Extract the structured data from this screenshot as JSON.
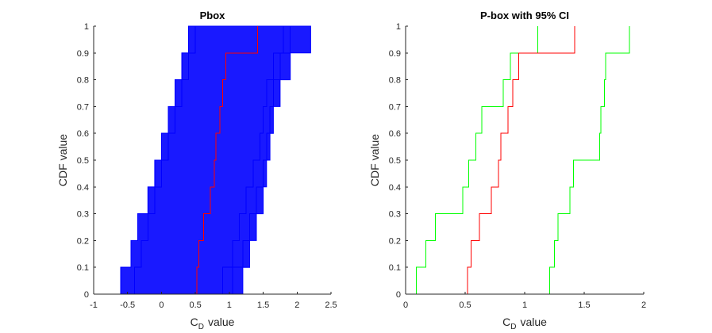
{
  "colors": {
    "axis": "#262626",
    "blue": "#0000ff",
    "red": "#ff0000",
    "green": "#00ff00",
    "band_fill": "#0000ff"
  },
  "chart_data": [
    {
      "type": "line",
      "style": "step-cdf",
      "title": "Pbox",
      "xlabel": "C_D value",
      "xlabel_main": "C",
      "xlabel_sub": "D",
      "xlabel_rest": "value",
      "ylabel": "CDF value",
      "xlim": [
        -1,
        2.5
      ],
      "ylim": [
        0,
        1
      ],
      "xticks": [
        -1,
        -0.5,
        0,
        0.5,
        1,
        1.5,
        2,
        2.5
      ],
      "xtick_labels": [
        "-1",
        "-0.5",
        "0",
        "0.5",
        "1",
        "1.5",
        "2",
        "2.5"
      ],
      "yticks": [
        0,
        0.1,
        0.2,
        0.3,
        0.4,
        0.5,
        0.6,
        0.7,
        0.8,
        0.9,
        1
      ],
      "ytick_labels": [
        "0",
        "0.1",
        "0.2",
        "0.3",
        "0.4",
        "0.5",
        "0.6",
        "0.7",
        "0.8",
        "0.9",
        "1"
      ],
      "band": {
        "color": "blue",
        "levels": [
          0,
          0.1,
          0.2,
          0.3,
          0.4,
          0.5,
          0.6,
          0.7,
          0.8,
          0.9,
          1
        ],
        "left": [
          -0.6,
          -0.45,
          -0.35,
          -0.2,
          -0.1,
          0.0,
          0.1,
          0.2,
          0.3,
          0.4,
          0.5
        ],
        "right": [
          1.0,
          1.2,
          1.3,
          1.4,
          1.5,
          1.55,
          1.6,
          1.65,
          1.75,
          1.9,
          2.2
        ]
      },
      "series": [
        {
          "color": "blue",
          "x": [
            -0.6,
            -0.45,
            -0.35,
            -0.2,
            -0.1,
            0.0,
            0.1,
            0.2,
            0.3,
            0.4,
            0.5
          ],
          "y": [
            0,
            0.1,
            0.2,
            0.3,
            0.4,
            0.5,
            0.6,
            0.7,
            0.8,
            0.9,
            1
          ]
        },
        {
          "color": "blue",
          "x": [
            -0.4,
            -0.3,
            -0.2,
            -0.1,
            0.0,
            0.1,
            0.2,
            0.3,
            0.4,
            0.5,
            0.6
          ],
          "y": [
            0,
            0.1,
            0.2,
            0.3,
            0.4,
            0.5,
            0.6,
            0.7,
            0.8,
            0.9,
            1
          ]
        },
        {
          "color": "blue",
          "x": [
            1.05,
            1.2,
            1.3,
            1.4,
            1.5,
            1.55,
            1.6,
            1.65,
            1.75,
            1.9,
            2.2
          ],
          "y": [
            0,
            0.1,
            0.2,
            0.3,
            0.4,
            0.5,
            0.6,
            0.7,
            0.8,
            0.9,
            1
          ]
        },
        {
          "color": "blue",
          "x": [
            0.9,
            1.05,
            1.15,
            1.25,
            1.35,
            1.45,
            1.5,
            1.55,
            1.65,
            1.8,
            2.1
          ],
          "y": [
            0,
            0.1,
            0.2,
            0.3,
            0.4,
            0.5,
            0.6,
            0.7,
            0.8,
            0.9,
            1
          ]
        },
        {
          "color": "red",
          "x": [
            0.52,
            0.55,
            0.62,
            0.72,
            0.78,
            0.8,
            0.86,
            0.9,
            0.95,
            1.42,
            1.42
          ],
          "y": [
            0,
            0.1,
            0.2,
            0.3,
            0.4,
            0.5,
            0.6,
            0.7,
            0.8,
            0.9,
            1
          ]
        }
      ]
    },
    {
      "type": "line",
      "style": "step-cdf",
      "title": "P-box with 95% CI",
      "xlabel": "C_D value",
      "xlabel_main": "C",
      "xlabel_sub": "D",
      "xlabel_rest": "value",
      "ylabel": "CDF value",
      "xlim": [
        0,
        2
      ],
      "ylim": [
        0,
        1
      ],
      "xticks": [
        0,
        0.5,
        1,
        1.5,
        2
      ],
      "xtick_labels": [
        "0",
        "0.5",
        "1",
        "1.5",
        "2"
      ],
      "yticks": [
        0,
        0.1,
        0.2,
        0.3,
        0.4,
        0.5,
        0.6,
        0.7,
        0.8,
        0.9,
        1
      ],
      "ytick_labels": [
        "0",
        "0.1",
        "0.2",
        "0.3",
        "0.4",
        "0.5",
        "0.6",
        "0.7",
        "0.8",
        "0.9",
        "1"
      ],
      "series": [
        {
          "color": "green",
          "x": [
            0.09,
            0.17,
            0.25,
            0.48,
            0.53,
            0.59,
            0.64,
            0.82,
            0.88,
            1.11,
            1.11
          ],
          "y": [
            0,
            0.1,
            0.2,
            0.3,
            0.4,
            0.5,
            0.6,
            0.7,
            0.8,
            0.9,
            1
          ]
        },
        {
          "color": "red",
          "x": [
            0.52,
            0.55,
            0.62,
            0.72,
            0.78,
            0.8,
            0.86,
            0.9,
            0.95,
            1.42,
            1.42
          ],
          "y": [
            0,
            0.1,
            0.2,
            0.3,
            0.4,
            0.5,
            0.6,
            0.7,
            0.8,
            0.9,
            1
          ]
        },
        {
          "color": "green",
          "x": [
            1.21,
            1.25,
            1.28,
            1.38,
            1.41,
            1.63,
            1.64,
            1.67,
            1.68,
            1.88,
            1.88
          ],
          "y": [
            0,
            0.1,
            0.2,
            0.3,
            0.4,
            0.5,
            0.6,
            0.7,
            0.8,
            0.9,
            1
          ]
        }
      ]
    }
  ]
}
